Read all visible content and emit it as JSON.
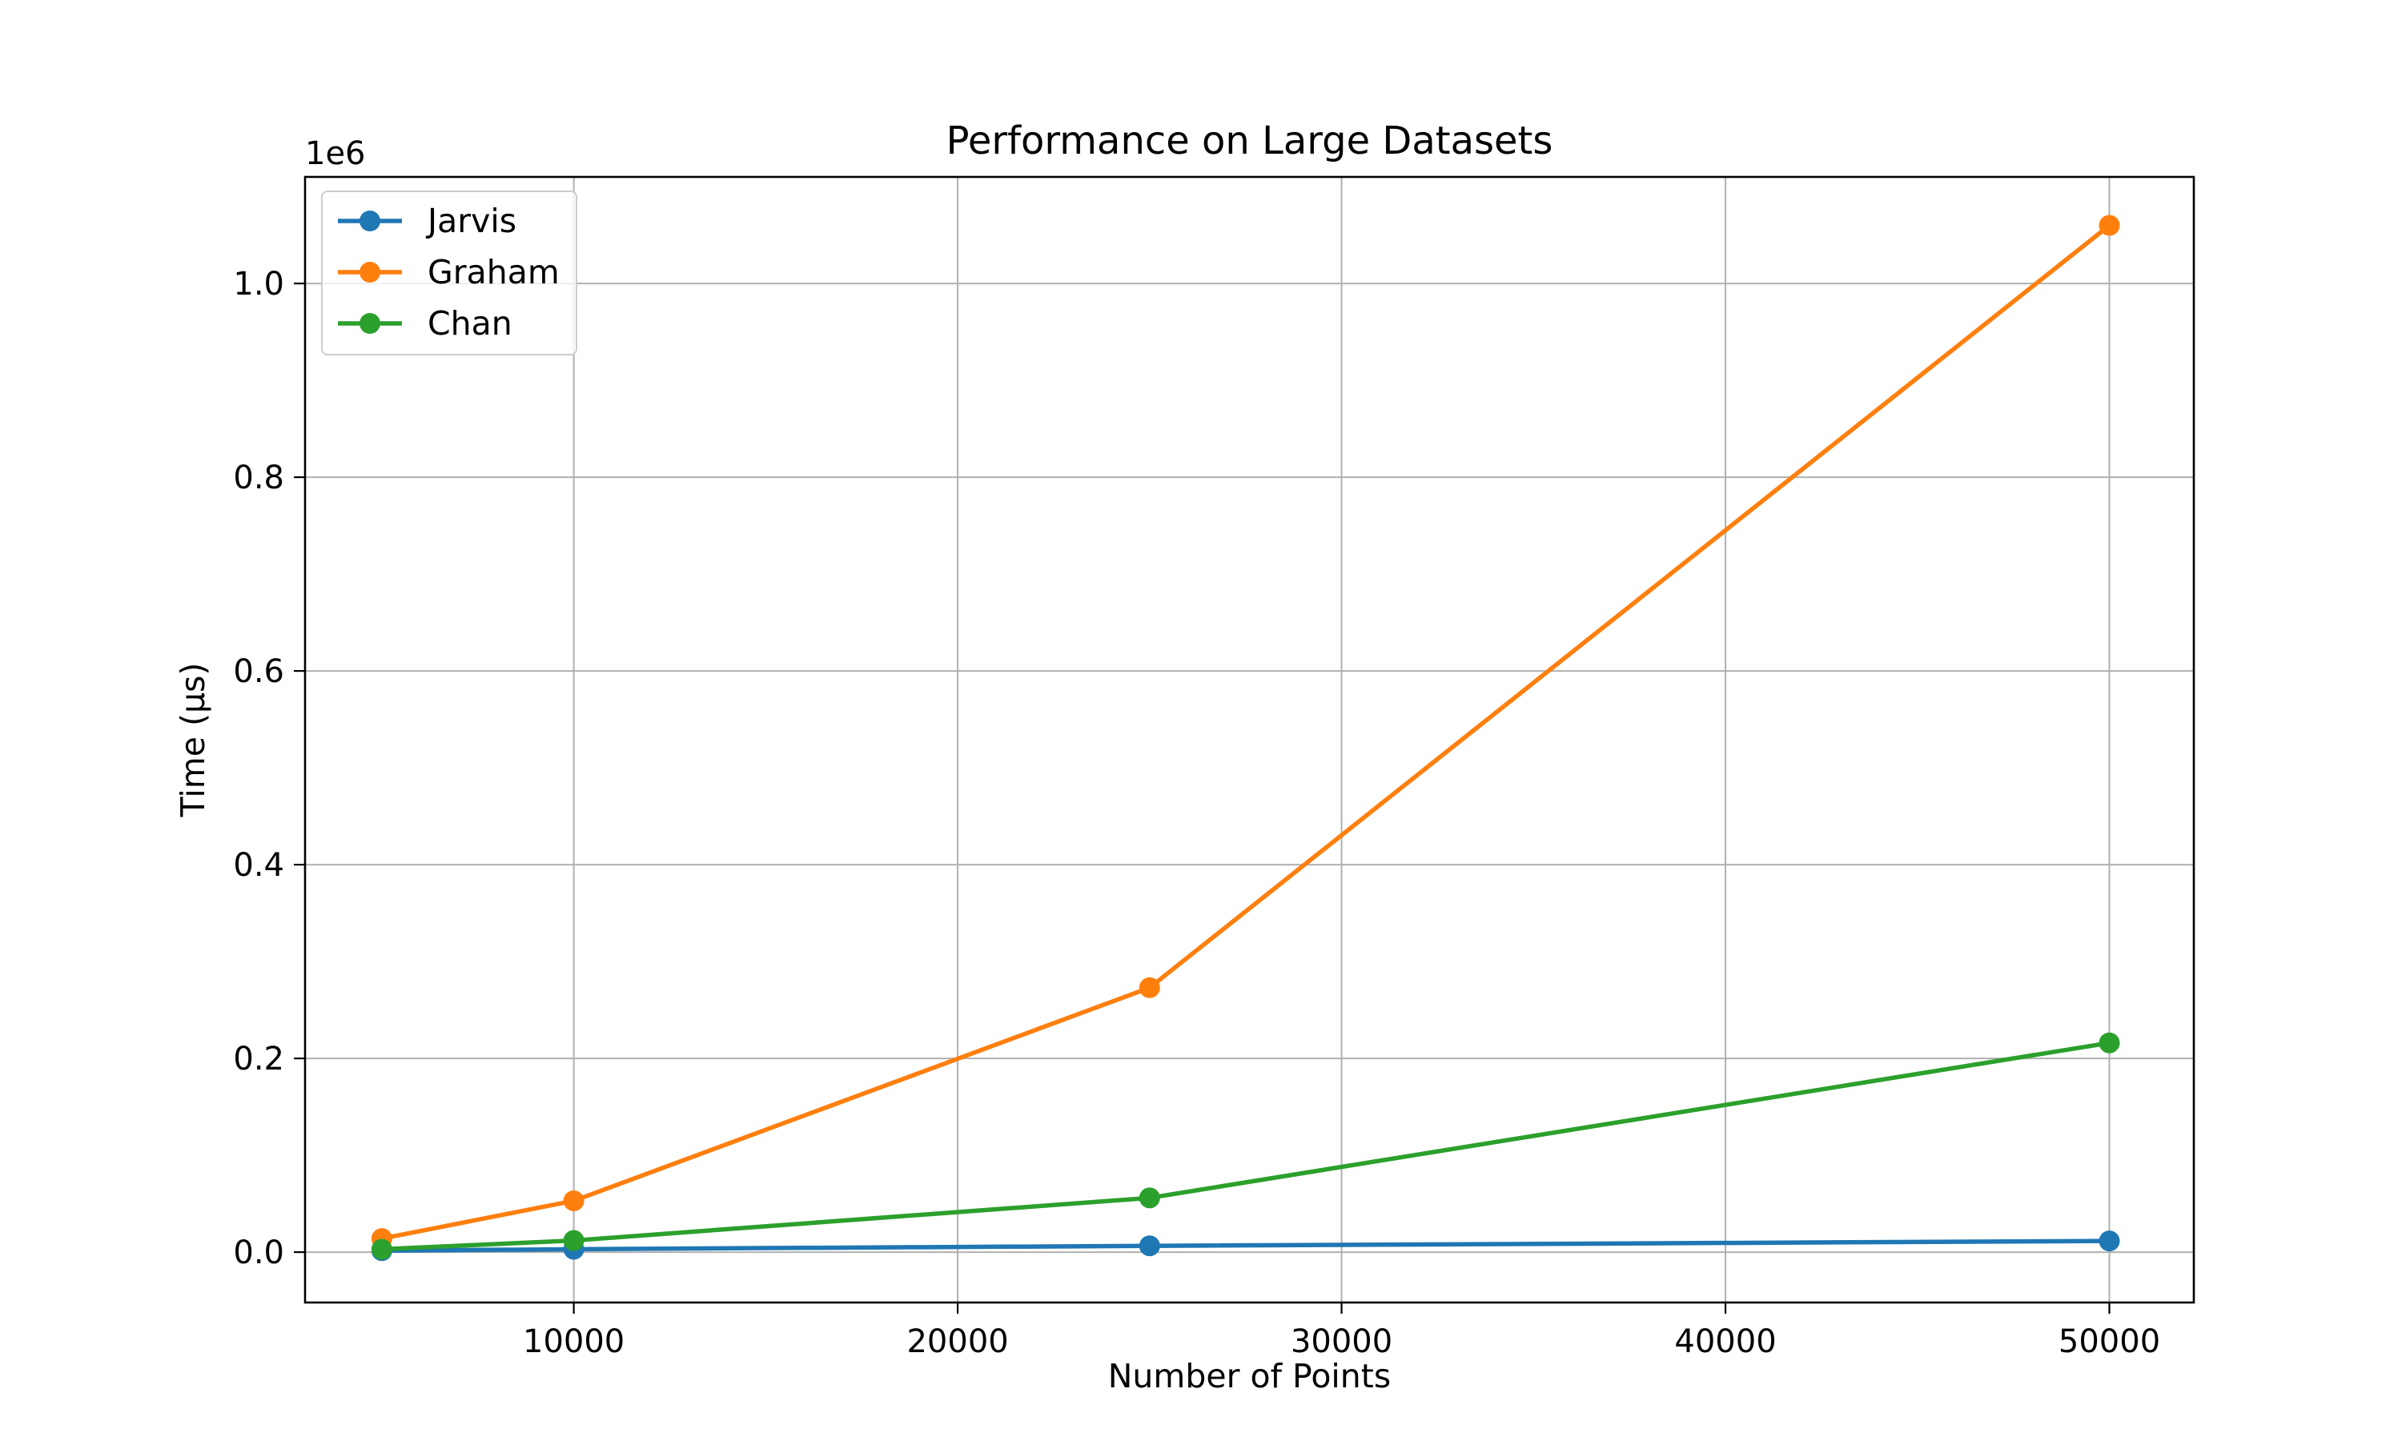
{
  "chart_data": {
    "type": "line",
    "title": "Performance on Large Datasets",
    "xlabel": "Number of Points",
    "ylabel": "Time (µs)",
    "y_offset_label": "1e6",
    "x": [
      5000,
      10000,
      25000,
      50000
    ],
    "xlim": [
      3000,
      52200
    ],
    "ylim": [
      -52000,
      1110000
    ],
    "x_ticks": [
      10000,
      20000,
      30000,
      40000,
      50000
    ],
    "x_tick_labels": [
      "10000",
      "20000",
      "30000",
      "40000",
      "50000"
    ],
    "y_ticks": [
      0,
      200000,
      400000,
      600000,
      800000,
      1000000
    ],
    "y_tick_labels": [
      "0.0",
      "0.2",
      "0.4",
      "0.6",
      "0.8",
      "1.0"
    ],
    "grid": true,
    "legend_position": "top-left",
    "series": [
      {
        "name": "Jarvis",
        "color": "#1f77b4",
        "values": [
          1500,
          3000,
          6500,
          11500
        ]
      },
      {
        "name": "Graham",
        "color": "#ff7f0e",
        "values": [
          14000,
          53000,
          273000,
          1060000
        ]
      },
      {
        "name": "Chan",
        "color": "#2ca02c",
        "values": [
          3000,
          12000,
          56000,
          216000
        ]
      }
    ]
  }
}
